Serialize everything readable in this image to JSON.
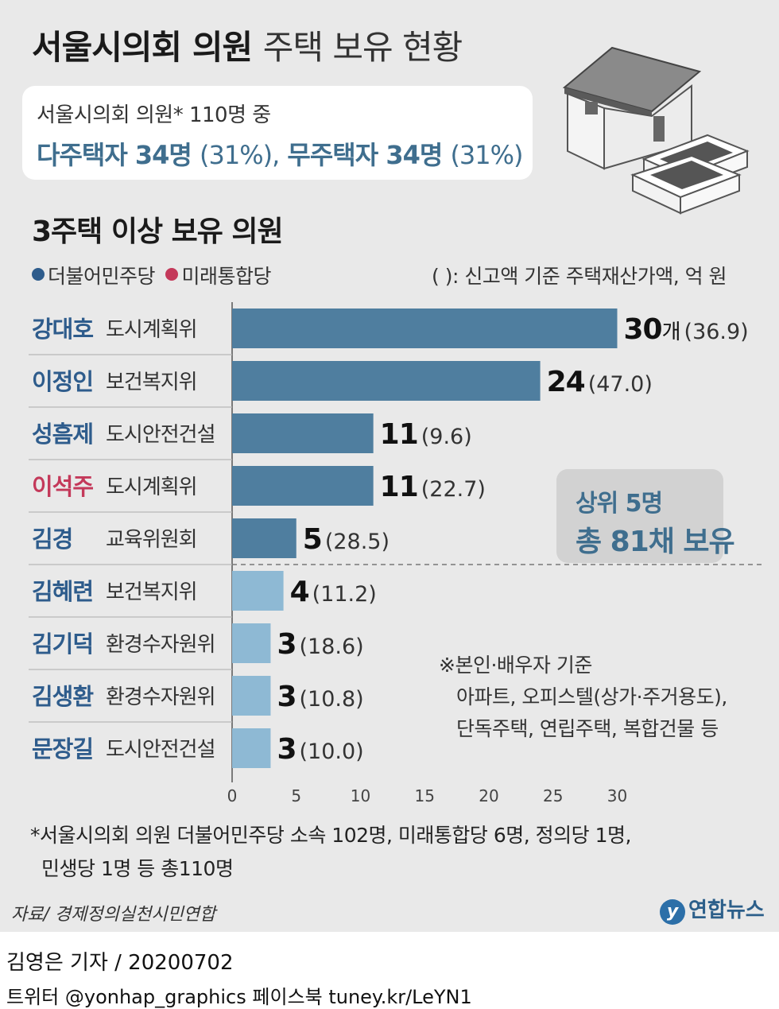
{
  "title": {
    "bold": "서울시의회 의원",
    "light": "주택 보유 현황"
  },
  "summary": {
    "line1": "서울시의회 의원* 110명 중",
    "multi_label": "다주택자 34명",
    "multi_pct": "(31%),",
    "none_label": "무주택자 34명",
    "none_pct": "(31%)"
  },
  "subtitle": "3주택 이상 보유 의원",
  "legend": {
    "dem": "더불어민주당",
    "utd": "미래통합당"
  },
  "unit_note": "( ): 신고액 기준 주택재산가액, 억 원",
  "colors": {
    "dem_name": "#2e5c8c",
    "utd_name": "#c4395a",
    "bar_dark": "#4f7e9f",
    "bar_light": "#8eb9d4",
    "accent": "#3f6e8e"
  },
  "chart_data": {
    "type": "bar",
    "orientation": "horizontal",
    "xlim": [
      0,
      30
    ],
    "xticks": [
      "0",
      "5",
      "10",
      "15",
      "20",
      "25",
      "30"
    ],
    "members": [
      {
        "name": "강대호",
        "committee": "도시계획위",
        "party": "dem",
        "value": 30,
        "value_label": "30",
        "unit": "개",
        "asset": "(36.9)",
        "top5": true
      },
      {
        "name": "이정인",
        "committee": "보건복지위",
        "party": "dem",
        "value": 24,
        "value_label": "24",
        "unit": "",
        "asset": "(47.0)",
        "top5": true
      },
      {
        "name": "성흠제",
        "committee": "도시안전건설",
        "party": "dem",
        "value": 11,
        "value_label": "11",
        "unit": "",
        "asset": "(9.6)",
        "top5": true
      },
      {
        "name": "이석주",
        "committee": "도시계획위",
        "party": "utd",
        "value": 11,
        "value_label": "11",
        "unit": "",
        "asset": "(22.7)",
        "top5": true
      },
      {
        "name": "김경",
        "committee": "교육위원회",
        "party": "dem",
        "value": 5,
        "value_label": "5",
        "unit": "",
        "asset": "(28.5)",
        "top5": true
      },
      {
        "name": "김혜련",
        "committee": "보건복지위",
        "party": "dem",
        "value": 4,
        "value_label": "4",
        "unit": "",
        "asset": "(11.2)",
        "top5": false
      },
      {
        "name": "김기덕",
        "committee": "환경수자원위",
        "party": "dem",
        "value": 3,
        "value_label": "3",
        "unit": "",
        "asset": "(18.6)",
        "top5": false
      },
      {
        "name": "김생환",
        "committee": "환경수자원위",
        "party": "dem",
        "value": 3,
        "value_label": "3",
        "unit": "",
        "asset": "(10.8)",
        "top5": false
      },
      {
        "name": "문장길",
        "committee": "도시안전건설",
        "party": "dem",
        "value": 3,
        "value_label": "3",
        "unit": "",
        "asset": "(10.0)",
        "top5": false
      }
    ]
  },
  "top5": {
    "line1": "상위 5명",
    "line2": "총 81채 보유"
  },
  "note": {
    "line1": "※본인·배우자 기준",
    "line2": "아파트, 오피스텔(상가·주거용도),",
    "line3": "단독주택, 연립주택, 복합건물 등"
  },
  "footnote": {
    "line1": "*서울시의회 의원 더불어민주당 소속 102명, 미래통합당 6명, 정의당 1명,",
    "line2": "민생당 1명 등 총110명"
  },
  "source": "자료/ 경제정의실천시민연합",
  "logo": {
    "mark": "y",
    "text": "연합뉴스"
  },
  "reporter": "김영은 기자 / 20200702",
  "social": "트위터 @yonhap_graphics  페이스북 tuney.kr/LeYN1"
}
